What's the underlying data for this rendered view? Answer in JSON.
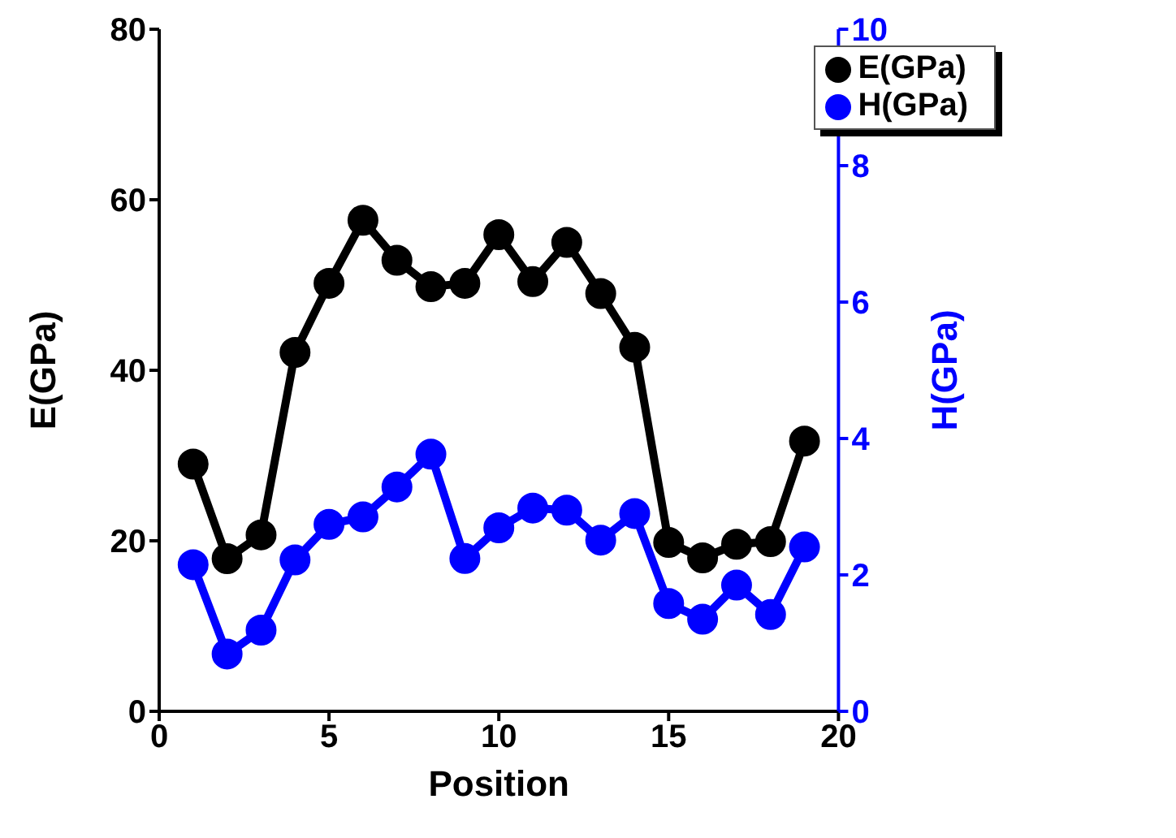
{
  "chart_data": {
    "type": "line",
    "xlabel": "Position",
    "ylabel": "E(GPa)",
    "y2label": "H(GPa)",
    "x": [
      1,
      2,
      3,
      4,
      5,
      6,
      7,
      8,
      9,
      10,
      11,
      12,
      13,
      14,
      15,
      16,
      17,
      18,
      19
    ],
    "series": [
      {
        "name": "E(GPa)",
        "color": "#000000",
        "values": [
          29.0,
          17.9,
          20.7,
          42.1,
          50.2,
          57.6,
          52.9,
          49.8,
          50.2,
          55.9,
          50.4,
          55.0,
          49.0,
          42.7,
          19.8,
          18.0,
          19.6,
          19.9,
          31.7
        ]
      },
      {
        "name": "H(GPa)",
        "color": "#0000ff",
        "axis": "y2",
        "values": [
          2.15,
          0.84,
          1.19,
          2.22,
          2.74,
          2.85,
          3.29,
          3.77,
          2.24,
          2.69,
          2.98,
          2.95,
          2.51,
          2.9,
          1.58,
          1.35,
          1.85,
          1.42,
          2.41
        ]
      }
    ],
    "xlim": [
      0,
      20
    ],
    "xticks": [
      0,
      5,
      10,
      15,
      20
    ],
    "ylim": [
      0,
      80
    ],
    "yticks": [
      0,
      20,
      40,
      60,
      80
    ],
    "y2lim": [
      0,
      10
    ],
    "y2ticks": [
      0,
      2,
      4,
      6,
      8,
      10
    ],
    "grid": false,
    "legend": "top right",
    "marker": "circle",
    "line_style": "solid"
  }
}
